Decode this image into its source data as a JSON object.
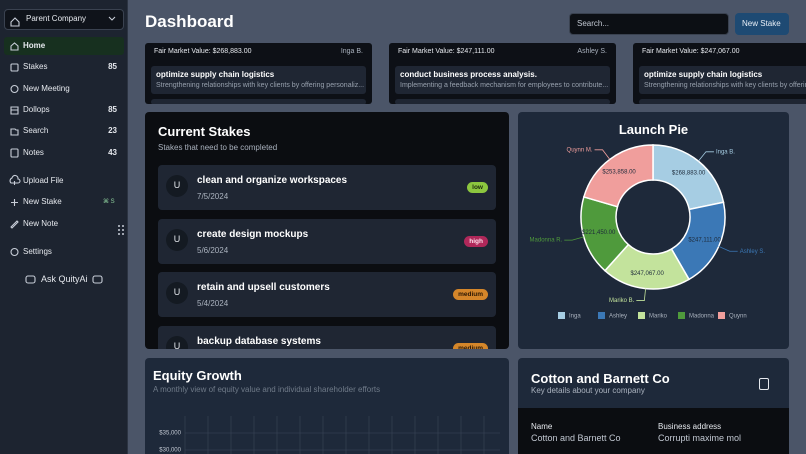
{
  "sidebar": {
    "org": "Parent Company",
    "nav": [
      {
        "label": "Home"
      },
      {
        "label": "Stakes",
        "count": 85
      },
      {
        "label": "New Meeting"
      },
      {
        "label": "Dollops",
        "count": 85
      },
      {
        "label": "Search",
        "count": 23
      },
      {
        "label": "Notes",
        "count": 43
      }
    ],
    "actions": [
      {
        "label": "Upload File"
      },
      {
        "label": "New Stake",
        "shortcut": "⌘ S"
      },
      {
        "label": "New Note"
      }
    ],
    "settings": "Settings",
    "assistant": "Ask QuityAi"
  },
  "header": {
    "title": "Dashboard",
    "search_placeholder": "Search...",
    "button": "New Stake"
  },
  "market_cards": [
    {
      "value_text": "Fair Market Value: $268,883.00",
      "owner": "Inga B.",
      "title": "optimize supply chain logistics",
      "description": "Strengthening relationships with key clients by offering personaliz..."
    },
    {
      "value_text": "Fair Market Value: $247,111.00",
      "owner": "Ashley S.",
      "title": "conduct business process analysis.",
      "description": "Implementing a feedback mechanism for employees to contribute..."
    },
    {
      "value_text": "Fair Market Value: $247,067.00",
      "owner": "",
      "title": "optimize supply chain logistics",
      "description": "Strengthening relationships with key clients by offering personaliz..."
    }
  ],
  "current_stakes": {
    "title": "Current Stakes",
    "subtitle": "Stakes that need to be completed",
    "items": [
      {
        "avatar": "U",
        "title": "clean and organize workspaces",
        "date": "7/5/2024",
        "priority": "low"
      },
      {
        "avatar": "U",
        "title": "create design mockups",
        "date": "5/6/2024",
        "priority": "high"
      },
      {
        "avatar": "U",
        "title": "retain and upsell customers",
        "date": "5/4/2024",
        "priority": "medium"
      },
      {
        "avatar": "U",
        "title": "backup database systems",
        "date": "",
        "priority": "medium"
      }
    ]
  },
  "company": {
    "title": "Cotton and Barnett Co",
    "subtitle": "Key details about your company",
    "fields": [
      {
        "label": "Name",
        "value": "Cotton and Barnett Co"
      },
      {
        "label": "Business address",
        "value": "Corrupti maxime mol"
      }
    ]
  },
  "chart_data": [
    {
      "type": "pie",
      "title": "Launch Pie",
      "categories": [
        "Inga",
        "Ashley",
        "Mariko",
        "Madonna",
        "Quynn"
      ],
      "callouts": [
        "Inga B.",
        "Ashley S.",
        "Mariko B.",
        "Madonna R.",
        "Quynn M."
      ],
      "values": [
        268883,
        247111,
        247067,
        221450,
        253858
      ],
      "value_labels": [
        "$268,883.00",
        "$247,111.00",
        "$247,067.00",
        "$221,450.00",
        "$253,858.00"
      ],
      "colors": [
        "#a6cde3",
        "#3b78b6",
        "#c3e39c",
        "#4f9a3c",
        "#f09e9c"
      ],
      "legend": "bottom"
    },
    {
      "type": "line",
      "title": "Equity Growth",
      "subtitle": "A monthly view of equity value and individual shareholder efforts",
      "ylim": [
        25000,
        40000
      ],
      "yticks": [
        {
          "value": 35000,
          "label": "$35,000"
        },
        {
          "value": 30000,
          "label": "$30,000"
        }
      ],
      "grid": true
    }
  ]
}
